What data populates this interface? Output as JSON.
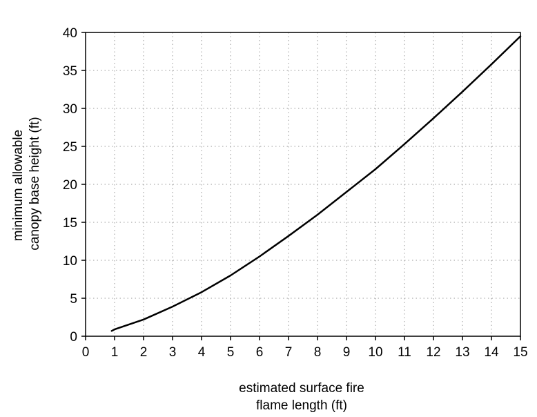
{
  "chart_data": {
    "type": "line",
    "title": "",
    "xlabel": [
      "estimated surface fire",
      "flame length (ft)"
    ],
    "ylabel": [
      "minimum allowable",
      "canopy base height (ft)"
    ],
    "xlim": [
      0,
      15
    ],
    "ylim": [
      0,
      40
    ],
    "xticks": [
      "0",
      "1",
      "2",
      "3",
      "4",
      "5",
      "6",
      "7",
      "8",
      "9",
      "10",
      "11",
      "12",
      "13",
      "14",
      "15"
    ],
    "yticks": [
      "0",
      "5",
      "10",
      "15",
      "20",
      "25",
      "30",
      "35",
      "40"
    ],
    "grid": true,
    "legend": "none",
    "line_color": "#000000",
    "series": [
      {
        "x": [
          0.9,
          1,
          2,
          3,
          4,
          5,
          6,
          7,
          8,
          9,
          10,
          11,
          12,
          13,
          14,
          15
        ],
        "y": [
          0.7,
          0.9,
          2.2,
          3.9,
          5.8,
          8.0,
          10.5,
          13.2,
          16.0,
          19.0,
          22.0,
          25.3,
          28.7,
          32.2,
          35.8,
          39.5
        ]
      }
    ]
  }
}
